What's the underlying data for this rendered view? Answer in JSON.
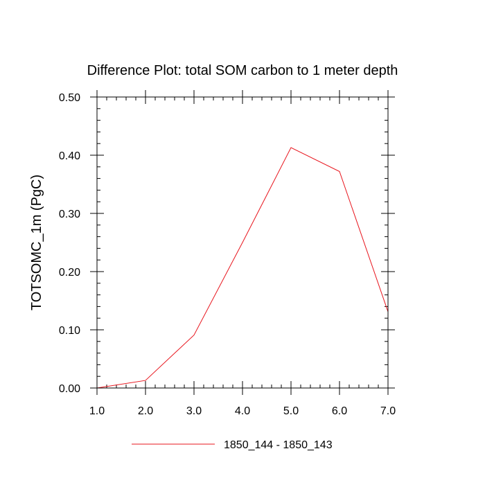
{
  "chart_data": {
    "type": "line",
    "title": "Difference Plot: total SOM carbon to 1 meter depth",
    "xlabel": "",
    "ylabel": "TOTSOMC_1m  (PgC)",
    "xlim": [
      1.0,
      7.0
    ],
    "ylim": [
      0.0,
      0.5
    ],
    "x_ticks": [
      "1.0",
      "2.0",
      "3.0",
      "4.0",
      "5.0",
      "6.0",
      "7.0"
    ],
    "y_ticks": [
      "0.00",
      "0.10",
      "0.20",
      "0.30",
      "0.40",
      "0.50"
    ],
    "x_tick_values": [
      1,
      2,
      3,
      4,
      5,
      6,
      7
    ],
    "y_tick_values": [
      0.0,
      0.1,
      0.2,
      0.3,
      0.4,
      0.5
    ],
    "grid": false,
    "legend_position": "bottom-center",
    "series": [
      {
        "name": "1850_144 - 1850_143",
        "color": "#e8141c",
        "x": [
          1,
          2,
          3,
          4,
          5,
          6,
          7
        ],
        "values": [
          0.0,
          0.013,
          0.091,
          0.25,
          0.413,
          0.372,
          0.131
        ]
      }
    ]
  }
}
